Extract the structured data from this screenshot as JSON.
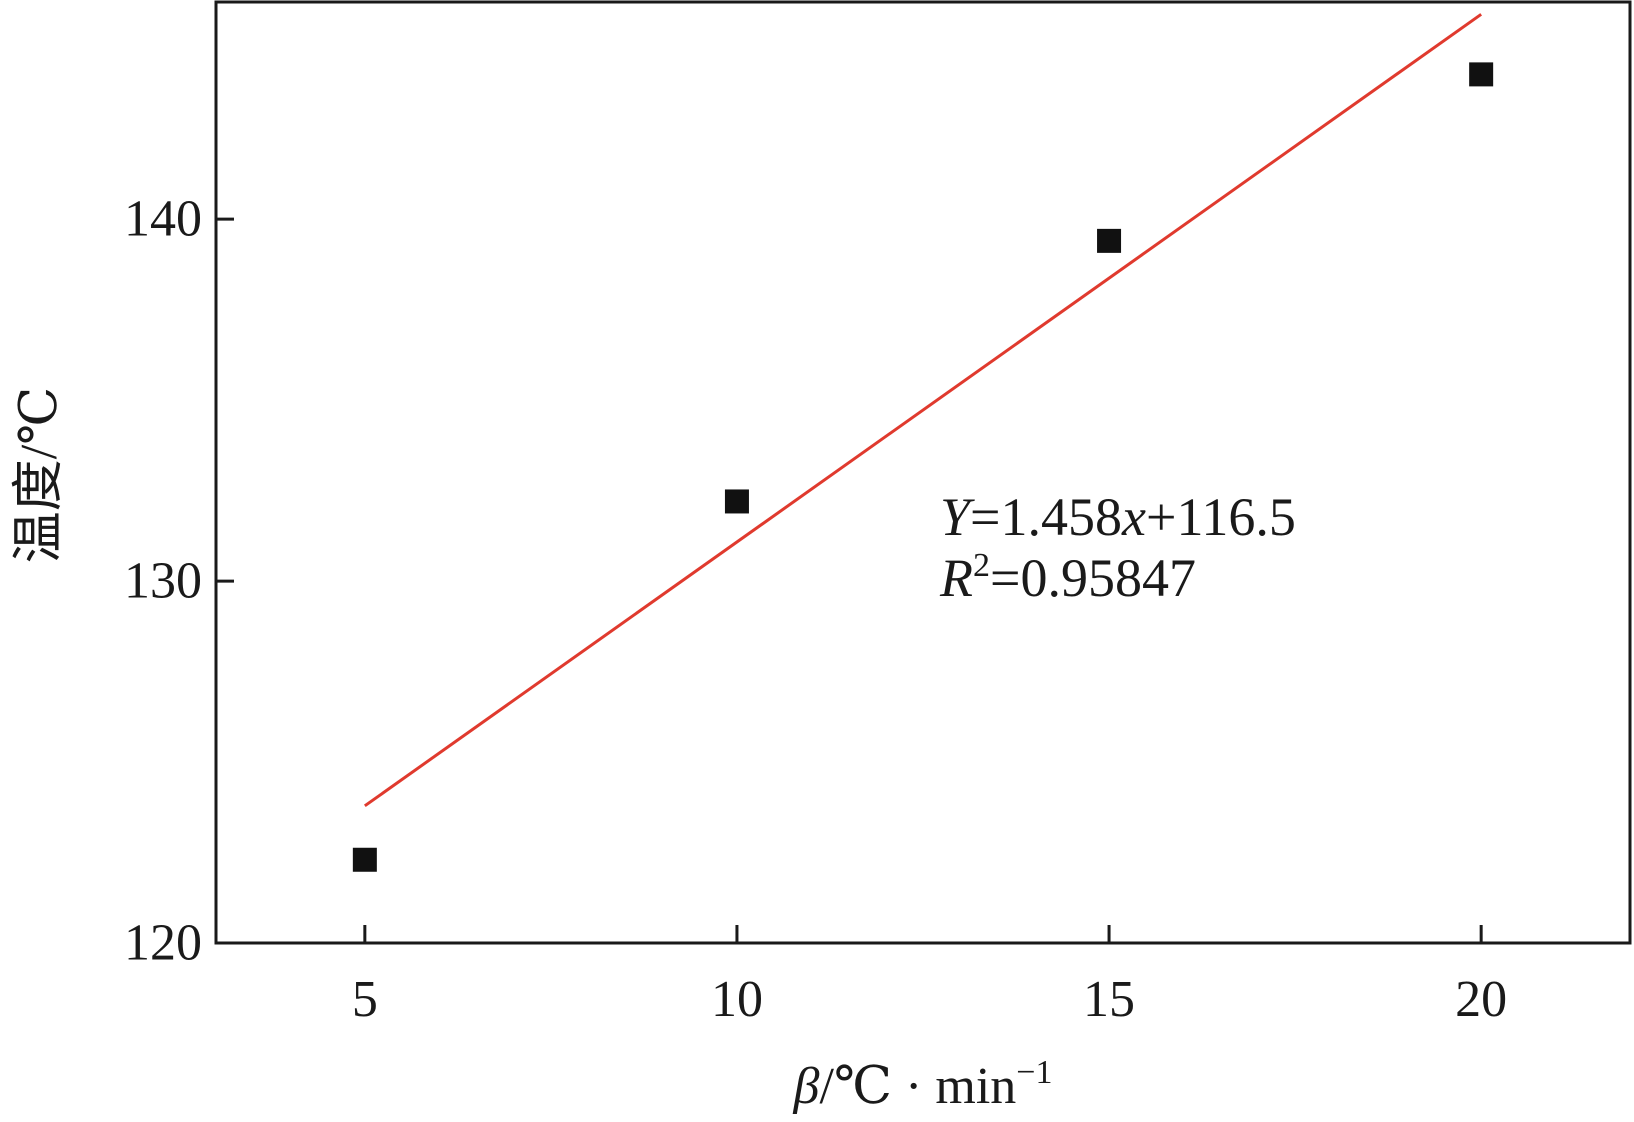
{
  "chart_data": {
    "type": "scatter",
    "title": "",
    "xlabel": {
      "symbol": "β",
      "rest": "/℃ · min",
      "sup": "−1"
    },
    "ylabel": "温度/℃",
    "xlim": [
      3,
      22
    ],
    "ylim": [
      120,
      146
    ],
    "xticks": [
      5,
      10,
      15,
      20
    ],
    "yticks": [
      120,
      130,
      140
    ],
    "grid": false,
    "legend": "none",
    "colors": {
      "points": "#111111",
      "fit_line": "#e03a2e",
      "axes": "#1a1a1a"
    },
    "series": [
      {
        "type": "scatter",
        "marker": "square",
        "x": [
          5,
          10,
          15,
          20
        ],
        "y": [
          122.3,
          132.2,
          139.4,
          144.0
        ]
      },
      {
        "type": "line",
        "fit": "linear",
        "slope": 1.458,
        "intercept": 116.5,
        "x_range": [
          5,
          20
        ]
      }
    ],
    "annotations": {
      "equation": {
        "y": "Y",
        "eq_part": "=1.458",
        "x": "x",
        "rest": "+116.5"
      },
      "r_squared": {
        "r": "R",
        "sup": "2",
        "rest": "=0.95847"
      }
    }
  }
}
